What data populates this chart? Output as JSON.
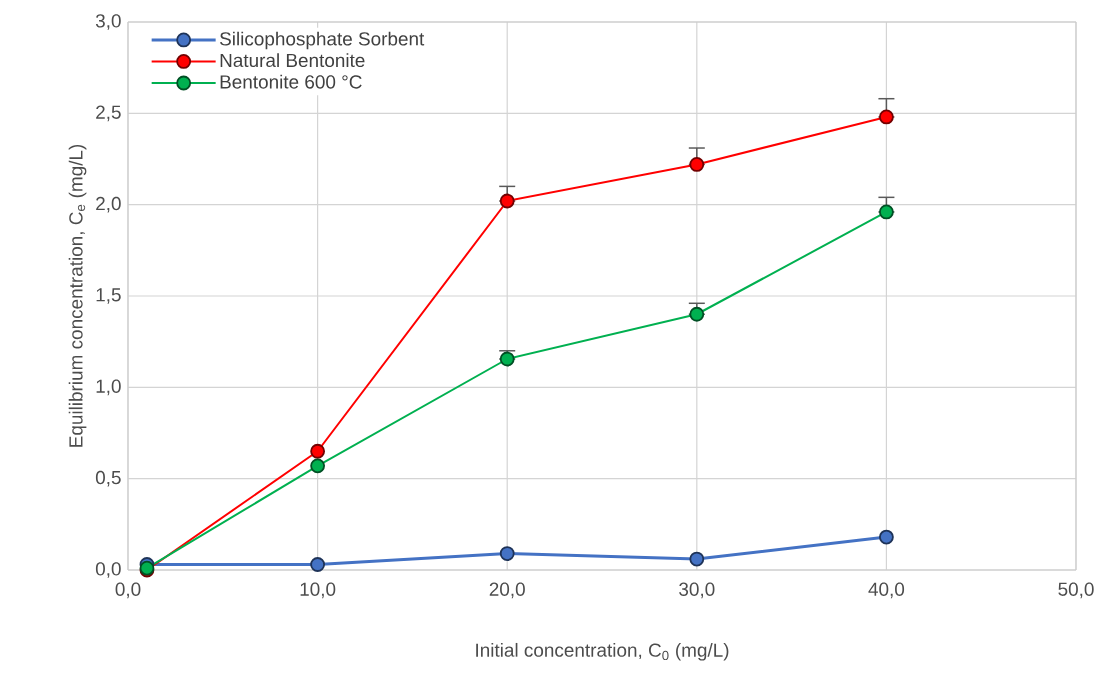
{
  "chart_data": {
    "type": "line",
    "xlabel": "Initial concentration, C$_{0}$ (mg/L)",
    "ylabel": "Equilibrium concentration, C$_{e}$ (mg/L)",
    "x": [
      1,
      10,
      20,
      30,
      40
    ],
    "series": [
      {
        "name": "Silicophosphate Sorbent",
        "color": "#4472c4",
        "values": [
          0.03,
          0.03,
          0.09,
          0.06,
          0.18
        ]
      },
      {
        "name": "Natural Bentonite",
        "color": "#ff0000",
        "values": [
          0.0,
          0.65,
          2.02,
          2.22,
          2.48
        ],
        "errors": [
          null,
          null,
          [
            2.02,
            2.1
          ],
          [
            2.22,
            2.31
          ],
          [
            2.48,
            2.58
          ]
        ]
      },
      {
        "name": "Bentonite 600 °C",
        "color": "#00b050",
        "values": [
          0.01,
          0.57,
          1.155,
          1.4,
          1.96
        ],
        "errors": [
          null,
          null,
          [
            1.155,
            1.2
          ],
          [
            1.4,
            1.46
          ],
          [
            1.96,
            2.04
          ]
        ]
      }
    ],
    "xlim": [
      0,
      50
    ],
    "ylim": [
      0,
      3
    ],
    "xticks": [
      {
        "value": 0,
        "label": "0,0"
      },
      {
        "value": 10,
        "label": "10,0"
      },
      {
        "value": 20,
        "label": "20,0"
      },
      {
        "value": 30,
        "label": "30,0"
      },
      {
        "value": 40,
        "label": "40,0"
      },
      {
        "value": 50,
        "label": "50,0"
      }
    ],
    "yticks": [
      {
        "value": 0,
        "label": "0,0"
      },
      {
        "value": 0.5,
        "label": "0,5"
      },
      {
        "value": 1,
        "label": "1,0"
      },
      {
        "value": 1.5,
        "label": "1,5"
      },
      {
        "value": 2,
        "label": "2,0"
      },
      {
        "value": 2.5,
        "label": "2,5"
      },
      {
        "value": 3,
        "label": "3,0"
      }
    ],
    "grid": true,
    "legend": "top left",
    "marker": "circle",
    "line_style": "solid"
  }
}
